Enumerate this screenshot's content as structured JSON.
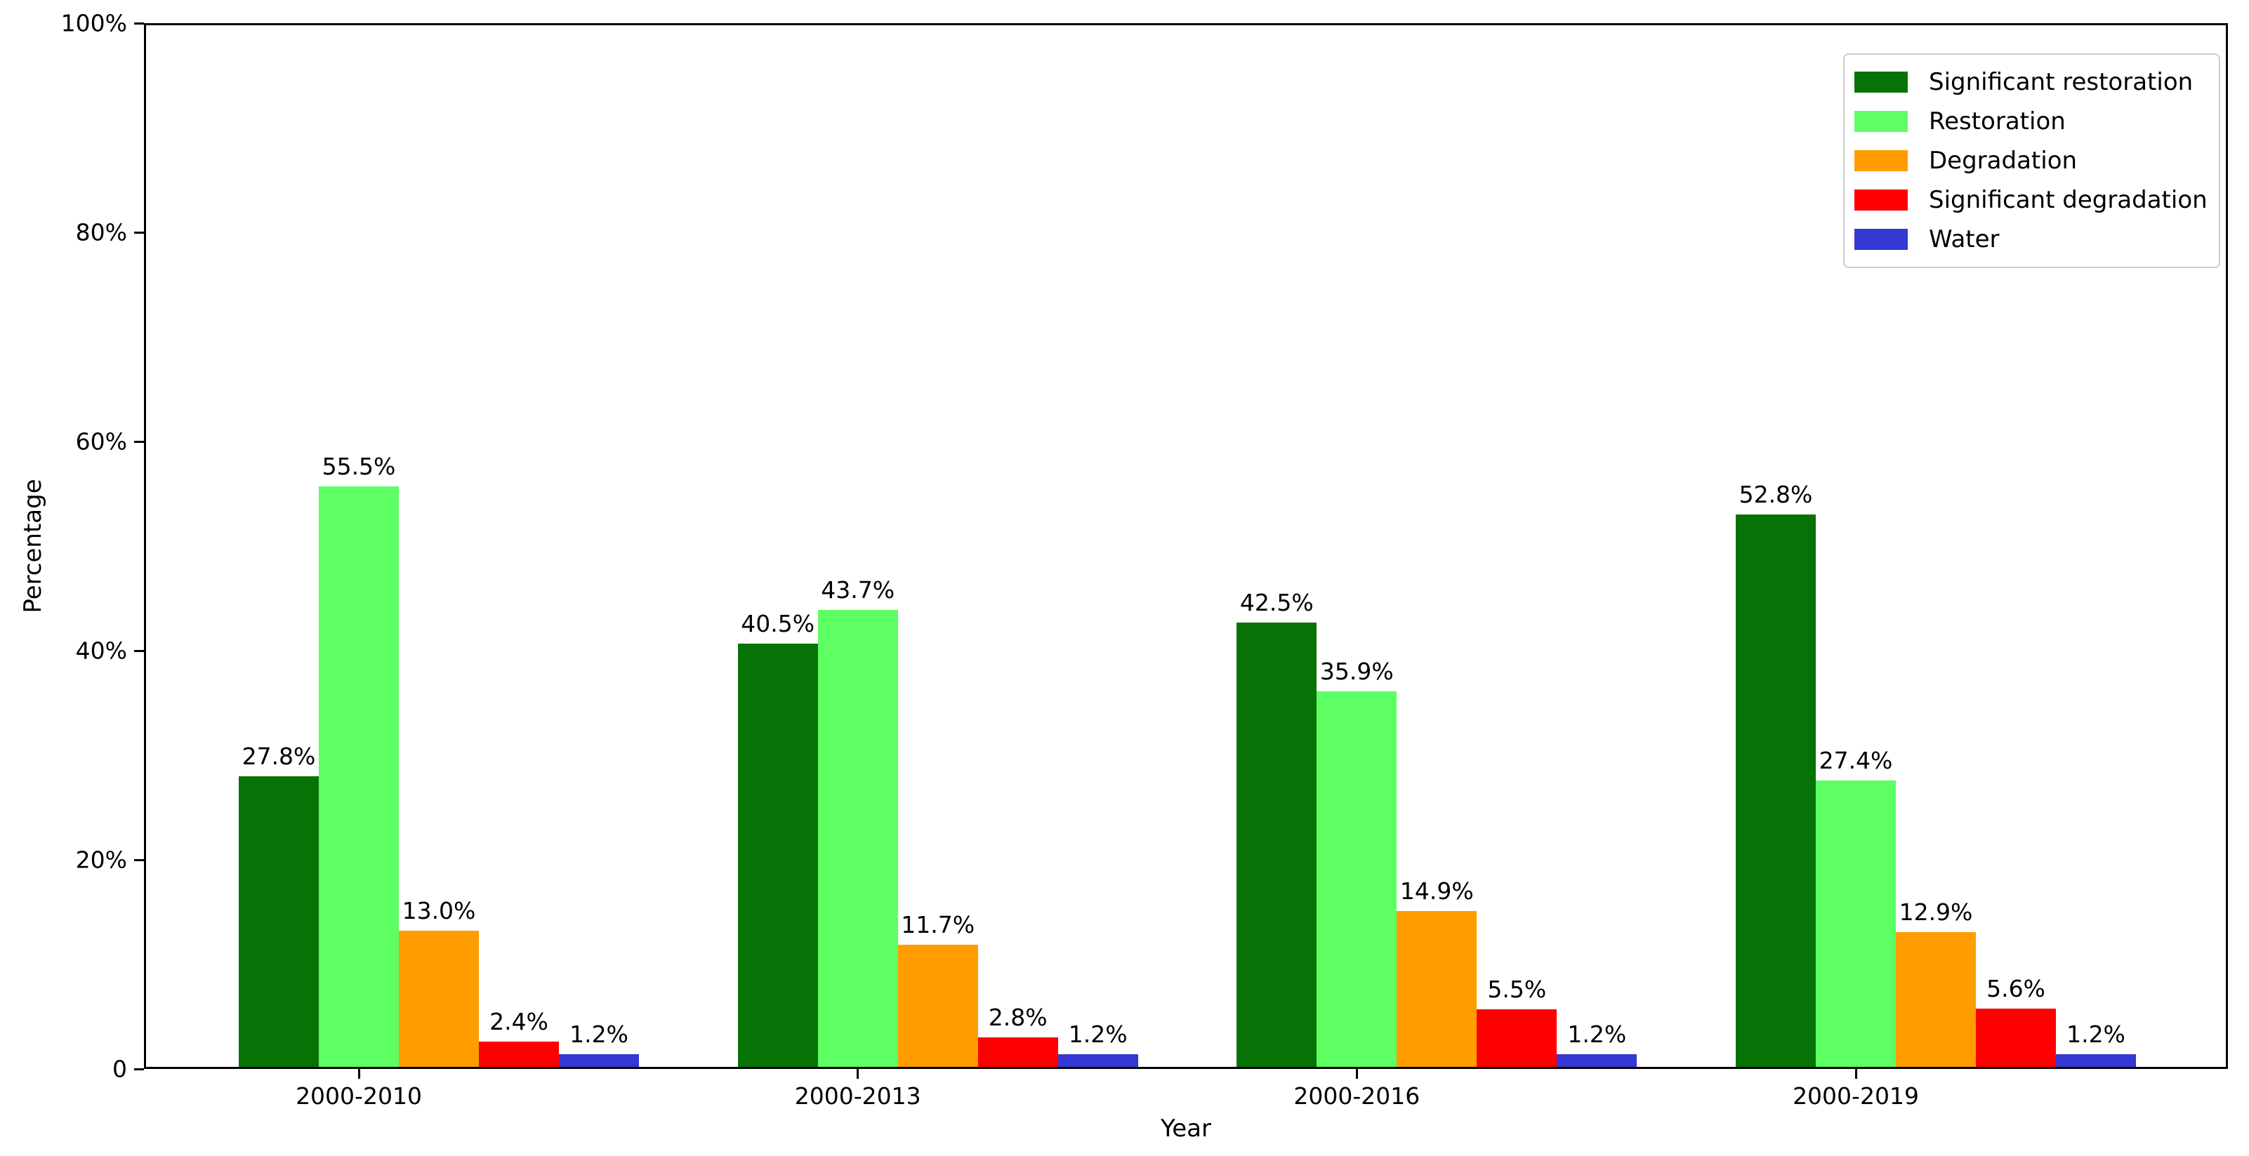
{
  "chart_data": {
    "type": "bar",
    "title": "",
    "xlabel": "Year",
    "ylabel": "Percentage",
    "categories": [
      "2000-2010",
      "2000-2013",
      "2000-2016",
      "2000-2019"
    ],
    "series": [
      {
        "name": "Significant restoration",
        "color": "#077307",
        "values": [
          27.8,
          40.5,
          42.5,
          52.8
        ]
      },
      {
        "name": "Restoration",
        "color": "#5eff63",
        "values": [
          55.5,
          43.7,
          35.9,
          27.4
        ]
      },
      {
        "name": "Degradation",
        "color": "#ff9d00",
        "values": [
          13.0,
          11.7,
          14.9,
          12.9
        ]
      },
      {
        "name": "Significant degradation",
        "color": "#fe0000",
        "values": [
          2.4,
          2.8,
          5.5,
          5.6
        ]
      },
      {
        "name": "Water",
        "color": "#3538d2",
        "values": [
          1.2,
          1.2,
          1.2,
          1.2
        ]
      }
    ],
    "bar_label_suffix": "%",
    "y_ticks": [
      {
        "value": 0,
        "label": "0"
      },
      {
        "value": 20,
        "label": "20%"
      },
      {
        "value": 40,
        "label": "40%"
      },
      {
        "value": 60,
        "label": "60%"
      },
      {
        "value": 80,
        "label": "80%"
      },
      {
        "value": 100,
        "label": "100%"
      }
    ],
    "ylim": [
      0,
      100
    ],
    "grid": false,
    "legend_position": "upper right"
  }
}
